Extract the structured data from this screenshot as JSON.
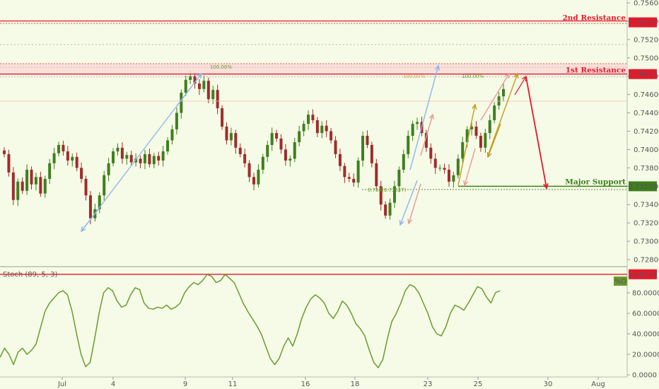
{
  "chart_data": {
    "type": "candlestick",
    "price_axis": {
      "ticks": [
        "0.75600",
        "0.75400",
        "0.75200",
        "0.75000",
        "0.74800",
        "0.74600",
        "0.74400",
        "0.74200",
        "0.74000",
        "0.73800",
        "0.73600",
        "0.73400",
        "0.73200",
        "0.73000",
        "0.72800"
      ],
      "tick_values": [
        0.756,
        0.754,
        0.752,
        0.75,
        0.748,
        0.746,
        0.744,
        0.742,
        0.74,
        0.738,
        0.736,
        0.734,
        0.732,
        0.73,
        0.728
      ],
      "range": [
        0.7275,
        0.7565
      ]
    },
    "time_axis": {
      "ticks": [
        "Jul",
        "4",
        "9",
        "11",
        "16",
        "18",
        "23",
        "25",
        "30",
        "Aug"
      ]
    },
    "levels": [
      {
        "name": "2nd Resistance",
        "value": 0.75387,
        "value_label": "0.75387",
        "color": "#e8182b"
      },
      {
        "name": "1st Resistance",
        "value": 0.74823,
        "value_label": "0.74823",
        "color": "#e8182b"
      },
      {
        "name": "Major Support",
        "value": 0.73599,
        "value_label": "0.73599",
        "color": "#3f7f1e"
      }
    ],
    "fib_labels": [
      "100.00%",
      "100.00%",
      "100.00%",
      "0.764(0.73537)"
    ],
    "close_path": [
      0.7395,
      0.7375,
      0.7345,
      0.7365,
      0.7355,
      0.7378,
      0.7362,
      0.737,
      0.7352,
      0.7368,
      0.7385,
      0.7396,
      0.7405,
      0.7398,
      0.7388,
      0.7392,
      0.738,
      0.7368,
      0.735,
      0.7325,
      0.7335,
      0.735,
      0.7372,
      0.7385,
      0.7398,
      0.7402,
      0.739,
      0.7394,
      0.7386,
      0.739,
      0.7385,
      0.7395,
      0.7384,
      0.7393,
      0.7388,
      0.7398,
      0.741,
      0.7422,
      0.744,
      0.7462,
      0.7476,
      0.748,
      0.7472,
      0.7466,
      0.7475,
      0.7455,
      0.7465,
      0.7445,
      0.7425,
      0.741,
      0.7418,
      0.7402,
      0.7395,
      0.7385,
      0.737,
      0.7362,
      0.7378,
      0.7392,
      0.7405,
      0.7418,
      0.7412,
      0.74,
      0.7388,
      0.739,
      0.7408,
      0.742,
      0.7428,
      0.7438,
      0.7432,
      0.7418,
      0.7426,
      0.742,
      0.741,
      0.7395,
      0.7382,
      0.737,
      0.7368,
      0.7364,
      0.7388,
      0.7415,
      0.7405,
      0.7385,
      0.736,
      0.734,
      0.7328,
      0.7342,
      0.736,
      0.7378,
      0.7395,
      0.7415,
      0.7428,
      0.743,
      0.7418,
      0.7402,
      0.739,
      0.738,
      0.738,
      0.7378,
      0.7365,
      0.7372,
      0.739,
      0.7408,
      0.7422,
      0.7425,
      0.7415,
      0.7402,
      0.7418,
      0.7432,
      0.7448,
      0.7458,
      0.7466
    ]
  },
  "stochastic": {
    "title": "Stoch (89, 5, 3)",
    "series_label": "%D",
    "series_color": "#6b9a2f",
    "axis_ticks": [
      "80.0000",
      "60.0000",
      "40.0000",
      "20.0000",
      "0.0000"
    ],
    "tick_values": [
      80,
      60,
      40,
      20,
      0
    ],
    "range": [
      -3,
      101
    ],
    "threshold_value": 98.0799,
    "threshold_label": "98.0799",
    "values": [
      17,
      26,
      20,
      10,
      22,
      26,
      20,
      24,
      30,
      46,
      62,
      70,
      75,
      80,
      82,
      78,
      62,
      40,
      20,
      8,
      12,
      35,
      60,
      80,
      85,
      82,
      72,
      66,
      68,
      78,
      85,
      83,
      70,
      65,
      64,
      66,
      65,
      68,
      64,
      66,
      70,
      80,
      86,
      90,
      88,
      92,
      98,
      96,
      90,
      92,
      98,
      94,
      90,
      80,
      70,
      62,
      55,
      48,
      40,
      28,
      16,
      10,
      16,
      28,
      36,
      28,
      40,
      55,
      66,
      74,
      78,
      75,
      70,
      60,
      55,
      62,
      72,
      68,
      60,
      50,
      45,
      38,
      24,
      12,
      7,
      15,
      35,
      52,
      60,
      70,
      82,
      88,
      86,
      80,
      70,
      60,
      47,
      40,
      38,
      47,
      60,
      68,
      66,
      63,
      70,
      78,
      86,
      84,
      76,
      70,
      80,
      82
    ]
  }
}
